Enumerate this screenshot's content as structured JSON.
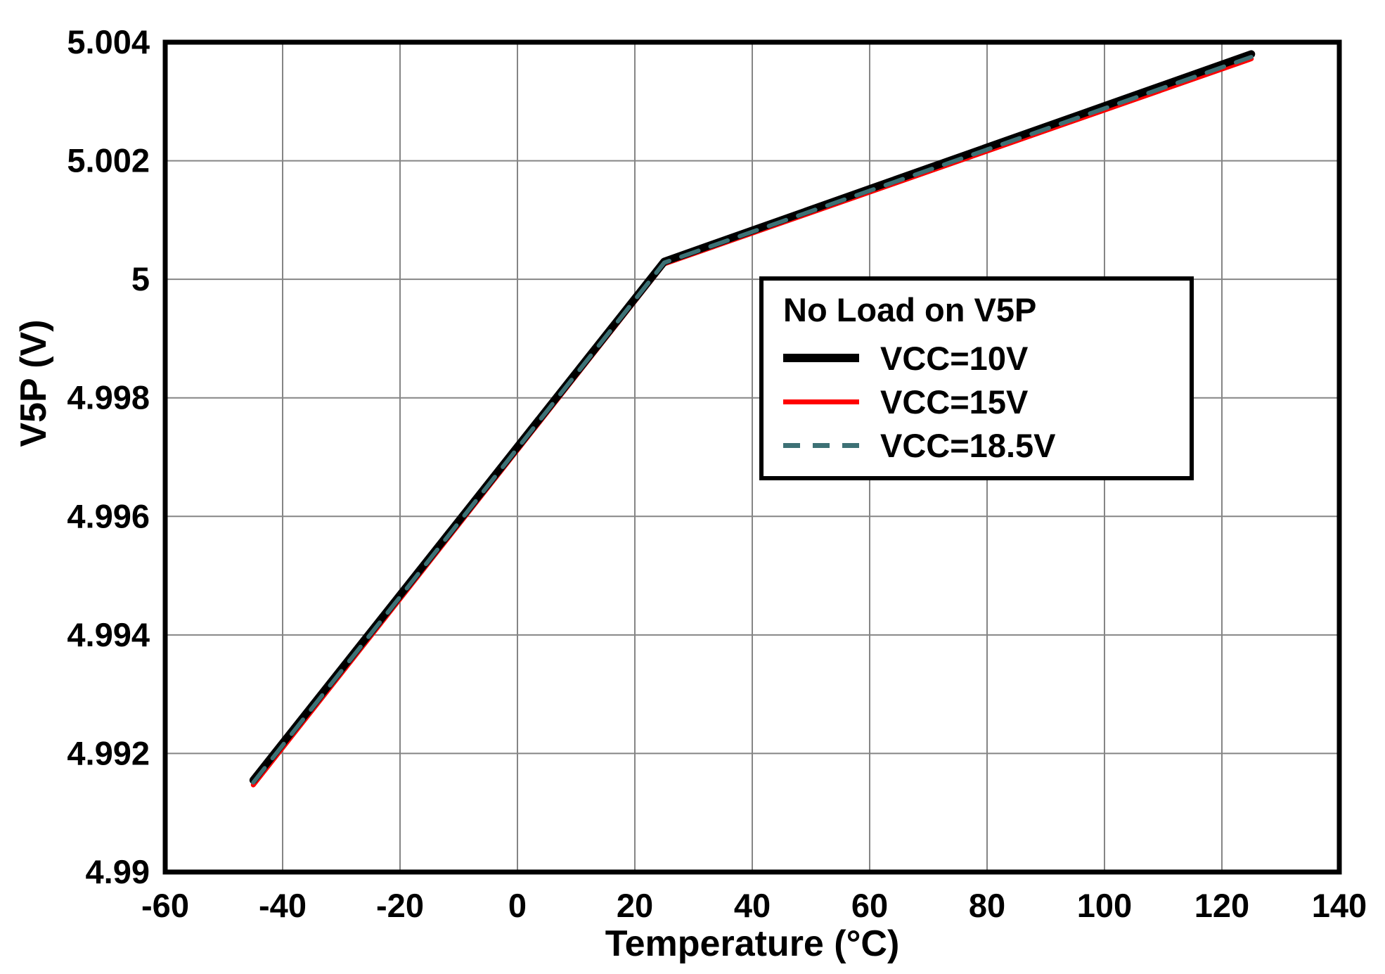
{
  "chart_data": {
    "type": "line",
    "title": "",
    "xlabel": "Temperature (°C)",
    "ylabel": "V5P (V)",
    "xlim": [
      -60,
      140
    ],
    "ylim": [
      4.99,
      5.004
    ],
    "xticks": [
      -60,
      -40,
      -20,
      0,
      20,
      40,
      60,
      80,
      100,
      120,
      140
    ],
    "xtick_labels": [
      "-60",
      "-40",
      "-20",
      "0",
      "20",
      "40",
      "60",
      "80",
      "100",
      "120",
      "140"
    ],
    "yticks": [
      4.99,
      4.992,
      4.994,
      4.996,
      4.998,
      5,
      5.002,
      5.004
    ],
    "ytick_labels": [
      "4.99",
      "4.992",
      "4.994",
      "4.996",
      "4.998",
      "5",
      "5.002",
      "5.004"
    ],
    "grid": true,
    "grid_color": "#858585",
    "axis_color": "#000000",
    "legend": {
      "title": "No Load on V5P",
      "position": "right-center",
      "entries": [
        {
          "label": "VCC=10V",
          "color": "#000000",
          "style": "solid",
          "width": 12
        },
        {
          "label": "VCC=15V",
          "color": "#ff0000",
          "style": "solid",
          "width": 7
        },
        {
          "label": "VCC=18.5V",
          "color": "#3d7175",
          "style": "dashed",
          "width": 7
        }
      ]
    },
    "series": [
      {
        "name": "VCC=15V",
        "color": "#ff0000",
        "style": "solid",
        "width": 7,
        "x": [
          -45,
          25,
          125
        ],
        "y": [
          4.99147,
          5.00026,
          5.00372
        ]
      },
      {
        "name": "VCC=10V",
        "color": "#000000",
        "style": "solid",
        "width": 11,
        "x": [
          -45,
          25,
          125
        ],
        "y": [
          4.99155,
          5.0003,
          5.0038
        ]
      },
      {
        "name": "VCC=18.5V",
        "color": "#3d7175",
        "style": "dashed",
        "width": 6,
        "x": [
          -45,
          25,
          125
        ],
        "y": [
          4.99151,
          5.00028,
          5.00375
        ]
      }
    ]
  }
}
